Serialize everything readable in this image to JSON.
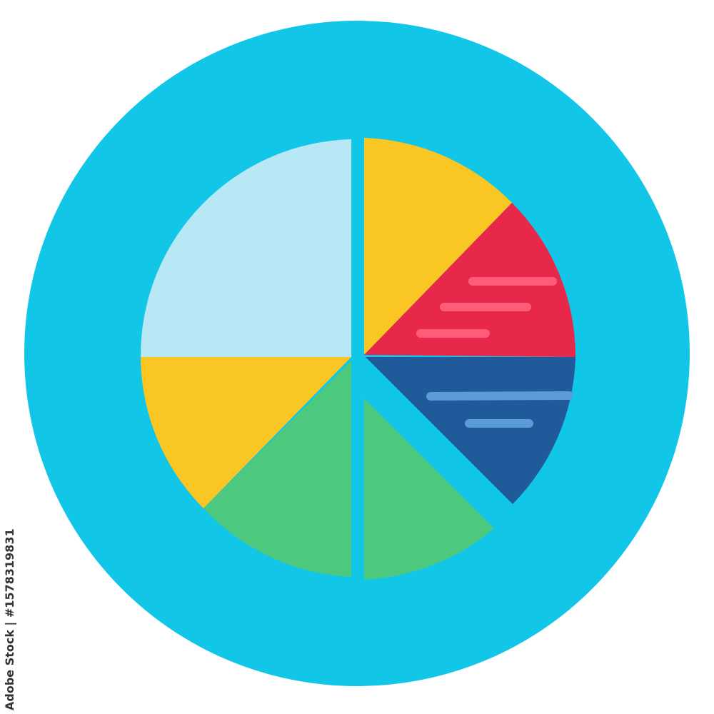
{
  "watermark": {
    "side_label": "Adobe Stock | #1578319831"
  },
  "colors": {
    "background_circle": "#12c6e8",
    "light_blue": "#b8e8f5",
    "yellow": "#f9c623",
    "red": "#e8284a",
    "dark_blue": "#215a9a",
    "green": "#4cc87f",
    "pink_line": "#ff5c78",
    "blue_line": "#5b9bd6"
  },
  "icon": "pie-chart-icon"
}
